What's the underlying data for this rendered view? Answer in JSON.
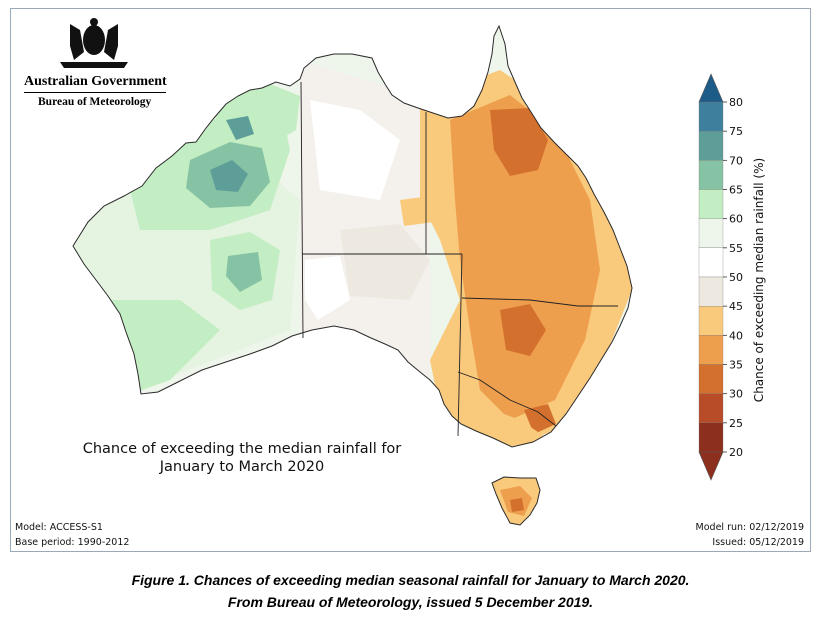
{
  "header": {
    "agency": "Australian Government",
    "bureau": "Bureau of Meteorology"
  },
  "map": {
    "title_line1": "Chance of exceeding the median rainfall for",
    "title_line2": "January to March 2020",
    "model": "Model: ACCESS-S1",
    "base_period": "Base period: 1990-2012",
    "model_run": "Model run: 02/12/2019",
    "issued": "Issued: 05/12/2019"
  },
  "colorbar": {
    "label": "Chance of exceeding median rainfall (%)",
    "ticks": [
      "80",
      "75",
      "70",
      "65",
      "60",
      "55",
      "50",
      "45",
      "40",
      "35",
      "30",
      "25",
      "20"
    ],
    "colors": [
      "#1d5b88",
      "#3d7f9c",
      "#5e9e99",
      "#86c3a4",
      "#c3edc2",
      "#eef5ea",
      "#ffffff",
      "#ede8e0",
      "#f9c97c",
      "#ee9f4e",
      "#d4702e",
      "#b94c28",
      "#8c2f1e"
    ]
  },
  "caption": {
    "line1": "Figure 1. Chances of exceeding median seasonal rainfall for January to March 2020.",
    "line2": "From Bureau of Meteorology, issued 5 December 2019."
  }
}
